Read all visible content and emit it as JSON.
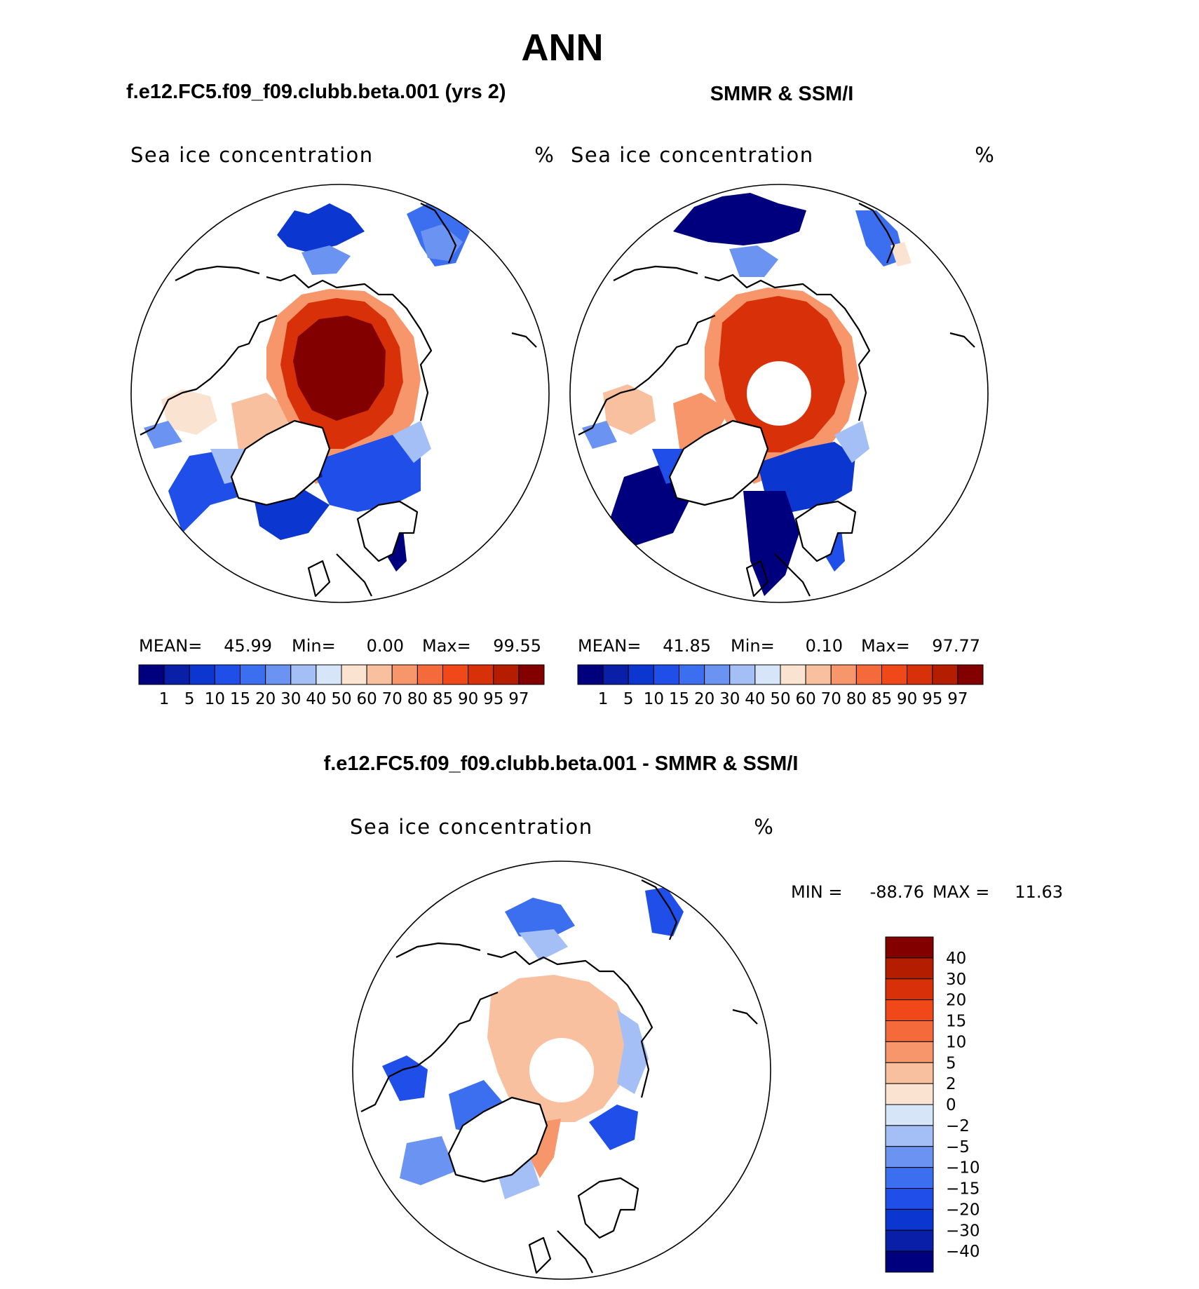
{
  "figure": {
    "title": "ANN",
    "panels": [
      {
        "id": "model",
        "header": "f.e12.FC5.f09_f09.clubb.beta.001 (yrs 2)",
        "field_name": "Sea ice concentration",
        "units": "%",
        "stats": {
          "mean_label": "MEAN=",
          "mean": "45.99",
          "min_label": "Min=",
          "min": "0.00",
          "max_label": "Max=",
          "max": "99.55"
        },
        "pole_hole": false
      },
      {
        "id": "obs",
        "header": "SMMR & SSM/I",
        "field_name": "Sea ice concentration",
        "units": "%",
        "stats": {
          "mean_label": "MEAN=",
          "mean": "41.85",
          "min_label": "Min=",
          "min": "0.10",
          "max_label": "Max=",
          "max": "97.77"
        },
        "pole_hole": true
      },
      {
        "id": "diff",
        "header": "f.e12.FC5.f09_f09.clubb.beta.001 - SMMR & SSM/I",
        "field_name": "Sea ice concentration",
        "units": "%",
        "stats": {
          "min_label": "MIN =",
          "min": "-88.76",
          "max_label": "MAX =",
          "max": "11.63"
        },
        "pole_hole": true
      }
    ]
  },
  "legends": {
    "absolute": {
      "labels": [
        "1",
        "5",
        "10",
        "15",
        "20",
        "30",
        "40",
        "50",
        "60",
        "70",
        "80",
        "85",
        "90",
        "95",
        "97"
      ],
      "colors": [
        "#00007f",
        "#0a1fa8",
        "#0b36d0",
        "#1f4fe8",
        "#3c6ff0",
        "#6a93f2",
        "#a4bff5",
        "#d6e6f8",
        "#fbe3d2",
        "#f9c0a0",
        "#f7966a",
        "#f46a3b",
        "#f04818",
        "#d83008",
        "#b41d00",
        "#820000"
      ]
    },
    "difference": {
      "labels": [
        "40",
        "30",
        "20",
        "15",
        "10",
        "5",
        "2",
        "0",
        "-2",
        "-5",
        "-10",
        "-15",
        "-20",
        "-30",
        "-40"
      ],
      "colors": [
        "#820000",
        "#b41d00",
        "#d83008",
        "#f04818",
        "#f46a3b",
        "#f7966a",
        "#f9c0a0",
        "#fbe3d2",
        "#d6e6f8",
        "#a4bff5",
        "#6a93f2",
        "#3c6ff0",
        "#1f4fe8",
        "#0b36d0",
        "#0a1fa8",
        "#00007f"
      ]
    }
  },
  "map": {
    "projection": "North Polar Stereographic",
    "colors": {
      "dark_red": "#820000",
      "red": "#d83008",
      "orange_red": "#f04818",
      "orange": "#f7966a",
      "peach": "#f9c0a0",
      "light_peach": "#fbe3d2",
      "light_blue": "#d6e6f8",
      "pale_blue": "#a4bff5",
      "mid_blue": "#3c6ff0",
      "blue": "#0b36d0",
      "navy": "#00007f",
      "land": "#ffffff"
    }
  }
}
